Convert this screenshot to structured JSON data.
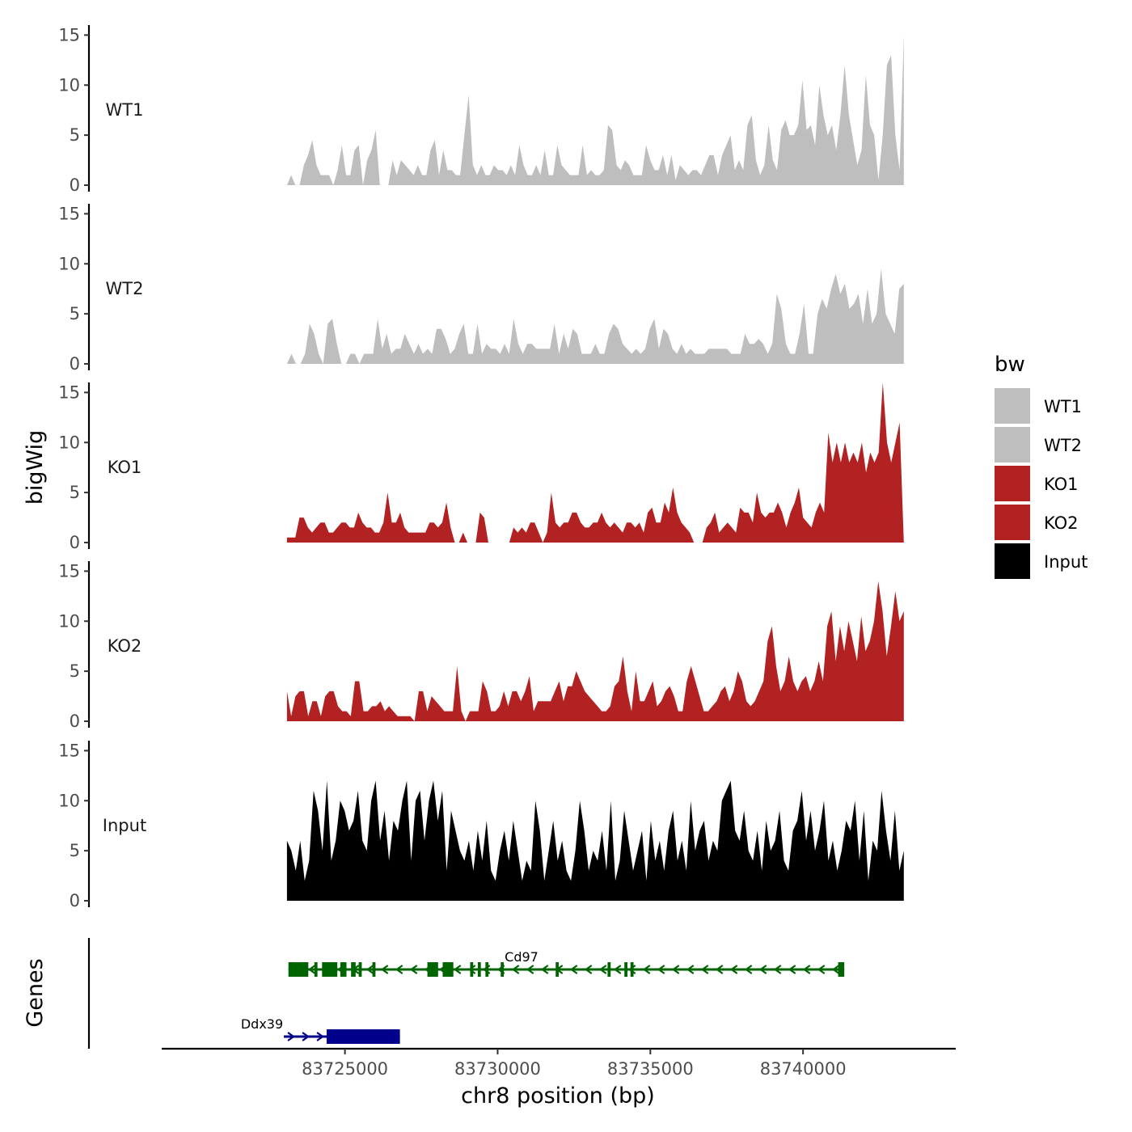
{
  "chart_data": {
    "type": "area",
    "xlabel": "chr8 position (bp)",
    "ylabel_tracks": "bigWig",
    "ylabel_genes": "Genes",
    "xlim": [
      83719000,
      83745000
    ],
    "x_ticks": [
      83725000,
      83730000,
      83735000,
      83740000
    ],
    "x_tick_labels": [
      "83725000",
      "83730000",
      "83735000",
      "83740000"
    ],
    "ylim": [
      0,
      16
    ],
    "y_ticks": [
      0,
      5,
      10,
      15
    ],
    "y_tick_labels": [
      "0",
      "5",
      "10",
      "15"
    ],
    "region": [
      83723100,
      83743300
    ],
    "legend": {
      "title": "bw",
      "entries": [
        {
          "label": "WT1",
          "color": "#bebebe"
        },
        {
          "label": "WT2",
          "color": "#bebebe"
        },
        {
          "label": "KO1",
          "color": "#b22222"
        },
        {
          "label": "KO2",
          "color": "#b22222"
        },
        {
          "label": "Input",
          "color": "#000000"
        }
      ]
    },
    "tracks": [
      {
        "name": "WT1",
        "color": "#bebebe",
        "values": [
          0,
          1,
          0,
          0,
          2,
          3,
          4.5,
          2,
          1,
          1,
          1,
          0,
          1.5,
          4,
          1,
          1,
          3.5,
          4,
          0,
          2.5,
          3.5,
          5.5,
          0,
          0,
          0,
          2.5,
          1,
          2.5,
          2,
          1.5,
          1,
          2,
          1,
          1,
          3.5,
          4.5,
          1,
          3.5,
          1.5,
          1.5,
          1,
          1,
          5,
          9,
          2,
          1,
          2,
          1,
          1,
          2,
          1.5,
          1.5,
          1,
          2,
          1,
          4,
          2,
          1,
          1,
          2,
          1,
          3.5,
          1,
          1,
          4,
          2,
          1.5,
          1,
          1,
          1,
          4,
          1,
          1.5,
          1,
          1,
          1.5,
          6,
          5.5,
          2,
          1.5,
          2.5,
          2,
          1,
          1,
          1,
          4,
          2.5,
          1.5,
          1.5,
          3,
          1,
          3,
          0.5,
          2,
          1.5,
          1,
          1.5,
          1.5,
          1,
          2,
          3,
          3,
          1,
          3,
          4,
          5,
          1.5,
          2.5,
          1.5,
          6,
          7,
          2.5,
          1,
          2,
          6,
          2.5,
          1.5,
          5.5,
          6.5,
          5,
          5,
          6,
          10.5,
          5.5,
          6,
          4,
          10,
          7,
          5,
          6,
          3.5,
          7,
          12,
          7,
          4.5,
          2,
          3.5,
          11,
          6,
          5,
          0.5,
          5,
          12,
          13,
          5,
          1.5,
          15
        ]
      },
      {
        "name": "WT2",
        "color": "#bebebe",
        "values": [
          0,
          1,
          0,
          0,
          1,
          4,
          3,
          1,
          0,
          4,
          4.5,
          2,
          0,
          0,
          1,
          1,
          0,
          1,
          1,
          1,
          4.5,
          1.5,
          3,
          1,
          1.5,
          1.5,
          3,
          2,
          1,
          2,
          1,
          1.5,
          1,
          3.5,
          3.5,
          2.5,
          1,
          1.5,
          3,
          4,
          1,
          1,
          4,
          1,
          2,
          1.5,
          1.5,
          1,
          2,
          1,
          4.5,
          2,
          1,
          2,
          2,
          1.5,
          1.5,
          1.5,
          1.5,
          4,
          1,
          3,
          1.5,
          3.5,
          3,
          1,
          1,
          1,
          2,
          1,
          1,
          3,
          4,
          3.5,
          2,
          1.5,
          1,
          1.5,
          1,
          1.5,
          3.5,
          4.5,
          1.5,
          3.5,
          3,
          1.5,
          1,
          2,
          1,
          1.5,
          1,
          1,
          1,
          1.5,
          1.5,
          1.5,
          1.5,
          1.5,
          1,
          1,
          1,
          3,
          2,
          2,
          2.5,
          2,
          1,
          2,
          7,
          5.5,
          2,
          1,
          1,
          3,
          6,
          1,
          1,
          5,
          6.5,
          5.5,
          7.5,
          9,
          7,
          8,
          5.5,
          6,
          7,
          4,
          7.5,
          4,
          5,
          9.5,
          5,
          4,
          3,
          7.5,
          8
        ]
      },
      {
        "name": "KO1",
        "color": "#b22222",
        "values": [
          0.5,
          0.5,
          0.5,
          2.5,
          2.5,
          1.5,
          1,
          1.5,
          2,
          2,
          1,
          1,
          1.5,
          2,
          2,
          1.5,
          1.5,
          3,
          2,
          1.5,
          1.5,
          1,
          1,
          2,
          5,
          2,
          2,
          3,
          1.5,
          1,
          1,
          1,
          1,
          1,
          2,
          2,
          1.5,
          2,
          4,
          1.5,
          0,
          0,
          1,
          0,
          0,
          0,
          3,
          2.5,
          0,
          0,
          0,
          0,
          0,
          0,
          1.5,
          1,
          1.5,
          1,
          2,
          2,
          1,
          0,
          1,
          5,
          2,
          1.5,
          2,
          2,
          3,
          3,
          2,
          1.5,
          1.5,
          2,
          2,
          3,
          2,
          1.5,
          2,
          1.5,
          1,
          2,
          2,
          1.5,
          2,
          1,
          3,
          3.5,
          2,
          2,
          4,
          3,
          5.5,
          3,
          2,
          1.5,
          1,
          0,
          0,
          0,
          1.5,
          2,
          3,
          1,
          1.5,
          2,
          1.5,
          1,
          3.5,
          3,
          3,
          2,
          5,
          3,
          2.5,
          3,
          3,
          4,
          3,
          1.5,
          3,
          4,
          5.5,
          2.5,
          2,
          1.5,
          3,
          4,
          3,
          11,
          8,
          10,
          8,
          10,
          8,
          9,
          8,
          10,
          7,
          9,
          8,
          9,
          16,
          10,
          8,
          10,
          12,
          0
        ]
      },
      {
        "name": "KO2",
        "color": "#b22222",
        "values": [
          3,
          0.5,
          2.5,
          3,
          3,
          0.5,
          2,
          2,
          0.5,
          2.5,
          3,
          3,
          1.5,
          1,
          1,
          0.5,
          4,
          4,
          1,
          1,
          1.5,
          1.5,
          2,
          1,
          1.5,
          1,
          0.5,
          0.5,
          0.5,
          0.5,
          0,
          3,
          3,
          1,
          2.5,
          2,
          1.5,
          1,
          1,
          1,
          5.5,
          1,
          0,
          1,
          1,
          1,
          4,
          3,
          1,
          1,
          1.5,
          3,
          1.5,
          3,
          3,
          2,
          3,
          4.5,
          1,
          2,
          2,
          2,
          2,
          3,
          4,
          2,
          3.5,
          3.5,
          5,
          4,
          3,
          2.5,
          2,
          1.5,
          1,
          1,
          1.5,
          3.5,
          4,
          6.5,
          3,
          1,
          5,
          2,
          2,
          3,
          4,
          1.5,
          2,
          3,
          3.5,
          2.5,
          1,
          1,
          4,
          5.5,
          4,
          2.5,
          1,
          1,
          1.5,
          2,
          3,
          3.5,
          2,
          3,
          5,
          4,
          2,
          1.5,
          2,
          3,
          4,
          8,
          9.5,
          5.5,
          3,
          4,
          6.5,
          4,
          3,
          4,
          4.5,
          3,
          4,
          6,
          4,
          9.5,
          11,
          6,
          9.5,
          7,
          10,
          8,
          6,
          10.5,
          7,
          8,
          10,
          14,
          11,
          6.5,
          9.5,
          13,
          10,
          11
        ]
      },
      {
        "name": "Input",
        "color": "#000000",
        "values": [
          6,
          5,
          3,
          6,
          2,
          4,
          11,
          9,
          5,
          12,
          4,
          6,
          10,
          9,
          7,
          8,
          11,
          6,
          5,
          10,
          12,
          6,
          9,
          4,
          8,
          7,
          10,
          12,
          4,
          10,
          11,
          6,
          10,
          12,
          8,
          11,
          3,
          9,
          7,
          5,
          4,
          6,
          3,
          7,
          4,
          8,
          3,
          2,
          5,
          7,
          4,
          8,
          5,
          2,
          4,
          3,
          10,
          7,
          2,
          5,
          8,
          4,
          6,
          3,
          2,
          5,
          10,
          7,
          3,
          5,
          4,
          7,
          3,
          10,
          2,
          4,
          9,
          6,
          3,
          5,
          7,
          2,
          8,
          4,
          6,
          3,
          7,
          9,
          4,
          6,
          3,
          10,
          5,
          7,
          8,
          4,
          6,
          5,
          10,
          11,
          12,
          7,
          6,
          9,
          5,
          4,
          7,
          3,
          8,
          5,
          6,
          9,
          4,
          3,
          7,
          8,
          11,
          6,
          9,
          5,
          7,
          10,
          4,
          6,
          3,
          5,
          8,
          7,
          10,
          4,
          9,
          2,
          6,
          5,
          11,
          7,
          4,
          9,
          3,
          5
        ]
      }
    ],
    "genes": [
      {
        "name": "Cd97",
        "strand": "-",
        "start": 83723150,
        "end": 83741350,
        "color": "#006400",
        "exons": [
          [
            83723150,
            83723800
          ],
          [
            83724000,
            83724100
          ],
          [
            83724250,
            83724750
          ],
          [
            83724850,
            83725050
          ],
          [
            83725200,
            83725350
          ],
          [
            83725450,
            83725550
          ],
          [
            83725900,
            83726000
          ],
          [
            83727700,
            83728050
          ],
          [
            83728200,
            83728550
          ],
          [
            83729100,
            83729200
          ],
          [
            83729350,
            83729450
          ],
          [
            83729600,
            83729700
          ],
          [
            83730100,
            83730200
          ],
          [
            83731900,
            83732000
          ],
          [
            83733600,
            83733700
          ],
          [
            83734150,
            83734250
          ],
          [
            83734350,
            83734450
          ],
          [
            83741150,
            83741350
          ]
        ]
      },
      {
        "name": "Ddx39",
        "strand": "+",
        "start": 83723000,
        "end": 83726800,
        "color": "#00008b",
        "exons": [
          [
            83724400,
            83726800
          ]
        ]
      }
    ]
  }
}
